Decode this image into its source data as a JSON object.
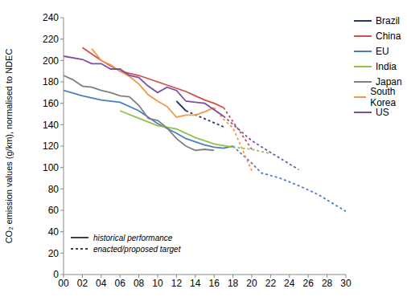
{
  "chart_data": {
    "type": "line",
    "y_label": "CO₂ emission values (g/km), normalised to NDEC",
    "xlim": [
      0,
      30
    ],
    "xticks": [
      {
        "value": 0,
        "label": "00"
      },
      {
        "value": 2,
        "label": "02"
      },
      {
        "value": 4,
        "label": "04"
      },
      {
        "value": 6,
        "label": "06"
      },
      {
        "value": 8,
        "label": "08"
      },
      10,
      12,
      14,
      16,
      18,
      20,
      22,
      24,
      26,
      28,
      30
    ],
    "ylim": [
      0,
      240
    ],
    "yticks": [
      0,
      20,
      40,
      60,
      80,
      100,
      120,
      140,
      160,
      180,
      200,
      220,
      240
    ],
    "grid": false,
    "legend": "right",
    "series": [
      {
        "name": "Brazil",
        "color": "#1f3a68",
        "line_style": "solid",
        "x": [
          12,
          13
        ],
        "values": [
          162,
          153
        ]
      },
      {
        "name": "Brazil",
        "color": "#1f3a68",
        "line_style": "dashed",
        "x": [
          13,
          17
        ],
        "values": [
          153,
          138
        ]
      },
      {
        "name": "China",
        "color": "#d0504a",
        "line_style": "solid",
        "x": [
          2,
          4,
          6,
          8,
          10,
          12,
          13,
          14,
          15,
          16,
          17
        ],
        "values": [
          212,
          200,
          190,
          186,
          180,
          174,
          171,
          167,
          163,
          160,
          156
        ]
      },
      {
        "name": "China",
        "color": "#d0504a",
        "line_style": "dashed",
        "x": [
          17,
          20
        ],
        "values": [
          156,
          117
        ]
      },
      {
        "name": "EU",
        "color": "#4a7cc7",
        "line_style": "solid",
        "x": [
          0,
          2,
          4,
          6,
          8,
          10,
          12,
          13,
          14,
          15,
          16,
          17,
          18
        ],
        "values": [
          172,
          167,
          163,
          161,
          153,
          141,
          132,
          127,
          124,
          121,
          119,
          118,
          120
        ]
      },
      {
        "name": "EU",
        "color": "#4a7cc7",
        "line_style": "dashed",
        "x": [
          18,
          20,
          21,
          23,
          25,
          27,
          30
        ],
        "values": [
          120,
          104,
          95,
          90,
          83,
          75,
          59
        ]
      },
      {
        "name": "India",
        "color": "#92c14a",
        "line_style": "solid",
        "x": [
          6,
          8,
          10,
          12,
          14,
          16,
          18
        ],
        "values": [
          153,
          146,
          139,
          136,
          128,
          122,
          119
        ]
      },
      {
        "name": "India",
        "color": "#92c14a",
        "line_style": "dashed",
        "x": [
          18,
          20,
          22
        ],
        "values": [
          119,
          117,
          113
        ]
      },
      {
        "name": "Japan",
        "color": "#7f7f7f",
        "line_style": "solid",
        "x": [
          0,
          1,
          2,
          3,
          4,
          5,
          6,
          7,
          8,
          9,
          10,
          11,
          12,
          13,
          14,
          15,
          16
        ],
        "values": [
          186,
          182,
          176,
          175,
          172,
          170,
          167,
          166,
          158,
          146,
          144,
          137,
          127,
          120,
          116,
          117,
          116
        ]
      },
      {
        "name": "South Korea",
        "color": "#f79646",
        "line_style": "solid",
        "x": [
          3,
          4,
          5,
          6,
          7,
          8,
          9,
          10,
          11,
          12,
          13,
          14,
          15,
          16
        ],
        "values": [
          211,
          200,
          196,
          190,
          185,
          178,
          168,
          162,
          157,
          147,
          149,
          149,
          152,
          156
        ]
      },
      {
        "name": "South Korea",
        "color": "#f79646",
        "line_style": "dashed",
        "x": [
          16,
          17,
          18,
          20
        ],
        "values": [
          156,
          145,
          137,
          97
        ]
      },
      {
        "name": "US",
        "color": "#7b4ea3",
        "line_style": "solid",
        "x": [
          0,
          2,
          3,
          4,
          5,
          6,
          7,
          8,
          9,
          10,
          11,
          12,
          13,
          14,
          15,
          16,
          17
        ],
        "values": [
          204,
          201,
          197,
          197,
          192,
          192,
          186,
          184,
          176,
          170,
          175,
          172,
          162,
          161,
          160,
          154,
          148
        ]
      },
      {
        "name": "US",
        "color": "#7b4ea3",
        "line_style": "dashed",
        "x": [
          17,
          20,
          22,
          25
        ],
        "values": [
          148,
          125,
          114,
          98
        ]
      }
    ],
    "annotations": [
      {
        "text": "historical performance",
        "line_style": "solid"
      },
      {
        "text": "enacted/proposed target",
        "line_style": "dashed"
      }
    ]
  }
}
